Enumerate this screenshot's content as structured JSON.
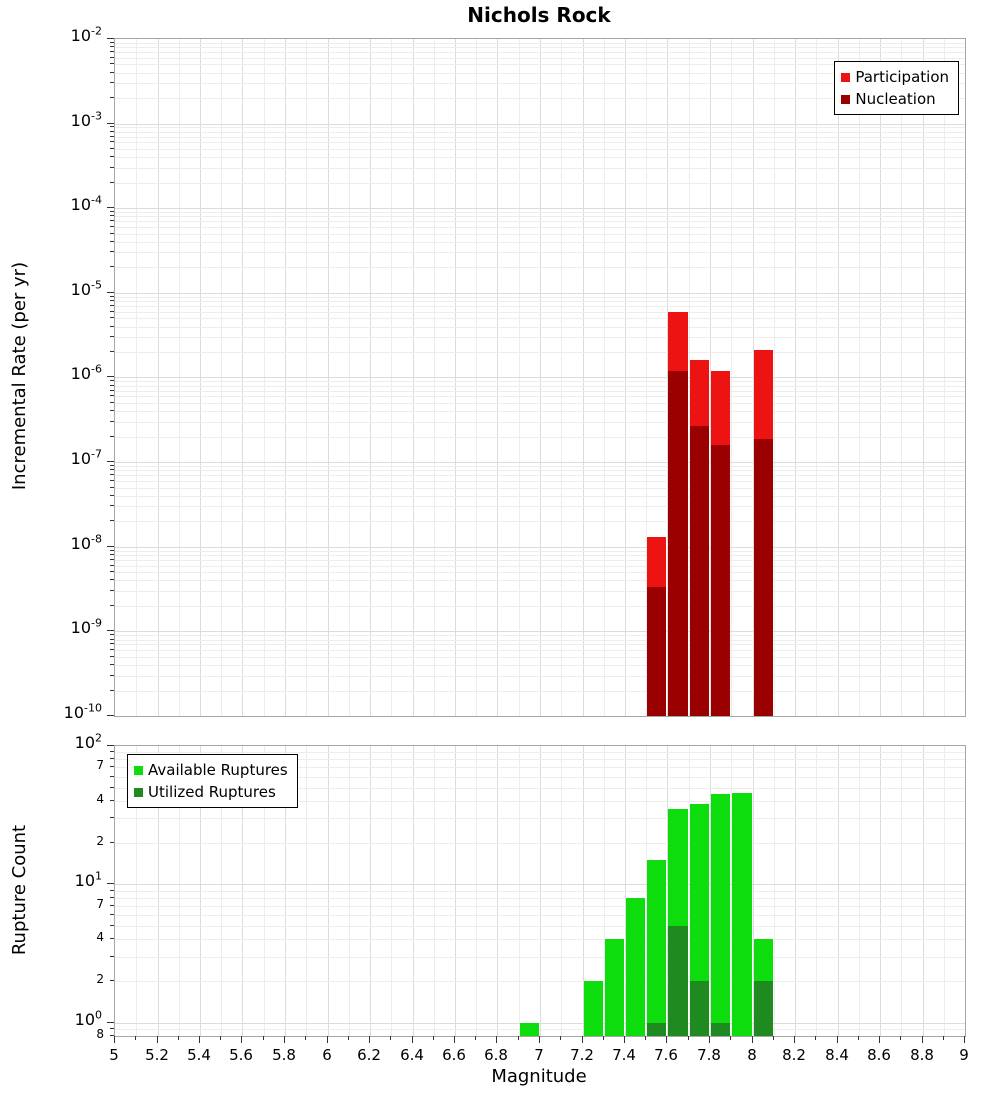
{
  "title": "Nichols Rock",
  "x_axis": {
    "label": "Magnitude",
    "min": 5,
    "max": 9,
    "major_tick_step": 0.2,
    "minor_tick_step": 0.1,
    "major_tick_labels": [
      "5",
      "5.2",
      "5.4",
      "5.6",
      "5.8",
      "6",
      "6.2",
      "6.4",
      "6.6",
      "6.8",
      "7",
      "7.2",
      "7.4",
      "7.6",
      "7.8",
      "8",
      "8.2",
      "8.4",
      "8.6",
      "8.8",
      "9"
    ]
  },
  "colors": {
    "participation": "#ee1313",
    "nucleation": "#9b0000",
    "available": "#0ddd0d",
    "utilized": "#1f8a1f",
    "grid_major": "#dcdcdc",
    "grid_minor": "#ededed",
    "axis_frame": "#a6a6a6",
    "tick": "#333333",
    "text": "#000000"
  },
  "chart_data": [
    {
      "type": "bar",
      "title": "Nichols Rock",
      "xlabel": "Magnitude",
      "ylabel": "Incremental Rate (per yr)",
      "y_scale": "log",
      "ylim": [
        1e-10,
        0.01
      ],
      "xlim": [
        5,
        9
      ],
      "grid": true,
      "legend_position": "top-right",
      "bin_width": 0.1,
      "y_major_tick_exponents": [
        -2,
        -3,
        -4,
        -5,
        -6,
        -7,
        -8,
        -9,
        -10
      ],
      "series": [
        {
          "name": "Participation",
          "color_key": "participation",
          "bins": [
            7.5,
            7.6,
            7.7,
            7.8,
            8.0
          ],
          "values": [
            1.3e-08,
            6e-06,
            1.6e-06,
            1.2e-06,
            2.1e-06
          ]
        },
        {
          "name": "Nucleation",
          "color_key": "nucleation",
          "bins": [
            7.5,
            7.6,
            7.7,
            7.8,
            8.0
          ],
          "values": [
            3.3e-09,
            1.2e-06,
            2.7e-07,
            1.6e-07,
            1.9e-07
          ]
        }
      ]
    },
    {
      "type": "bar",
      "xlabel": "Magnitude",
      "ylabel": "Rupture Count",
      "y_scale": "log",
      "ylim": [
        0.8,
        100
      ],
      "xlim": [
        5,
        9
      ],
      "grid": true,
      "legend_position": "top-left",
      "bin_width": 0.1,
      "y_major_tick_exponents": [
        2,
        1,
        0
      ],
      "y_minor_tick_labels": [
        {
          "label": "7",
          "value": 70
        },
        {
          "label": "4",
          "value": 40
        },
        {
          "label": "2",
          "value": 20
        },
        {
          "label": "7",
          "value": 7
        },
        {
          "label": "4",
          "value": 4
        },
        {
          "label": "2",
          "value": 2
        },
        {
          "label": "8",
          "value": 0.8
        }
      ],
      "series": [
        {
          "name": "Available Ruptures",
          "color_key": "available",
          "bins": [
            6.9,
            7.2,
            7.3,
            7.4,
            7.5,
            7.6,
            7.7,
            7.8,
            7.9,
            8.0
          ],
          "values": [
            1,
            2,
            4,
            8,
            15,
            35,
            38,
            45,
            46,
            4
          ]
        },
        {
          "name": "Utilized Ruptures",
          "color_key": "utilized",
          "bins": [
            7.5,
            7.6,
            7.7,
            7.8,
            8.0
          ],
          "values": [
            1,
            5,
            2,
            1,
            2
          ]
        }
      ]
    }
  ]
}
